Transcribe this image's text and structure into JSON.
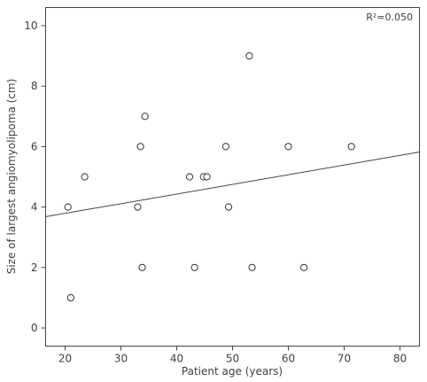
{
  "chart_data": {
    "type": "scatter",
    "title": "",
    "xlabel": "Patient age (years)",
    "ylabel": "Size of largest angiomyolipoma (cm)",
    "xlim": [
      16.5,
      83.5
    ],
    "ylim": [
      -0.6,
      10.6
    ],
    "x_ticks": [
      "20",
      "30",
      "40",
      "50",
      "60",
      "70",
      "80"
    ],
    "y_ticks": [
      "0",
      "2",
      "4",
      "6",
      "8",
      "10"
    ],
    "grid": false,
    "annotation": "R²=0.050",
    "points": [
      {
        "x": 20.5,
        "y": 4
      },
      {
        "x": 21.0,
        "y": 1
      },
      {
        "x": 23.5,
        "y": 5
      },
      {
        "x": 33.0,
        "y": 4
      },
      {
        "x": 33.5,
        "y": 6
      },
      {
        "x": 33.8,
        "y": 2
      },
      {
        "x": 34.3,
        "y": 7
      },
      {
        "x": 42.3,
        "y": 5
      },
      {
        "x": 43.2,
        "y": 2
      },
      {
        "x": 44.8,
        "y": 5
      },
      {
        "x": 45.4,
        "y": 5
      },
      {
        "x": 48.8,
        "y": 6
      },
      {
        "x": 49.3,
        "y": 4
      },
      {
        "x": 53.0,
        "y": 9
      },
      {
        "x": 53.5,
        "y": 2
      },
      {
        "x": 60.0,
        "y": 6
      },
      {
        "x": 62.8,
        "y": 2
      },
      {
        "x": 71.3,
        "y": 6
      }
    ],
    "fit_line": [
      {
        "x": 16.5,
        "y": 3.68
      },
      {
        "x": 83.5,
        "y": 5.82
      }
    ],
    "colors": {
      "axis": "#444444",
      "marker": "#333333",
      "fit_line": "#444444"
    }
  }
}
